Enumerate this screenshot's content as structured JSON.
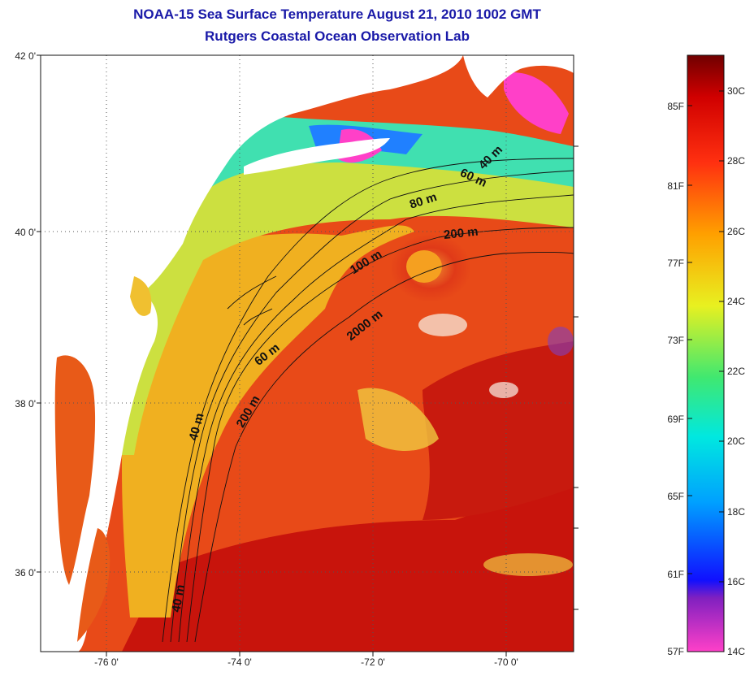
{
  "title": {
    "line1": "NOAA-15 Sea Surface Temperature August 21, 2010 1002 GMT",
    "line2": "Rutgers Coastal Ocean Observation Lab"
  },
  "axes": {
    "lat_ticks": [
      "42 0'",
      "40 0'",
      "38 0'",
      "36 0'"
    ],
    "lon_ticks": [
      "-76 0'",
      "-74 0'",
      "-72 0'",
      "-70 0'"
    ]
  },
  "contours": {
    "labels": [
      "40 m",
      "60 m",
      "80 m",
      "200 m",
      "100 m",
      "2000 m",
      "60 m",
      "200 m",
      "40 m",
      "40 m"
    ]
  },
  "colorbar": {
    "f_labels": [
      "85F",
      "81F",
      "77F",
      "73F",
      "69F",
      "65F",
      "61F",
      "57F"
    ],
    "c_labels": [
      "30C",
      "28C",
      "26C",
      "24C",
      "22C",
      "20C",
      "18C",
      "16C",
      "14C"
    ]
  },
  "colors": {
    "title": "#1a1aa8",
    "land": "#ffffff",
    "warm_water": "#e82a10",
    "hot_water": "#c8140c",
    "shelf_water": "#f5a020",
    "cool_water": "#c8e040"
  }
}
